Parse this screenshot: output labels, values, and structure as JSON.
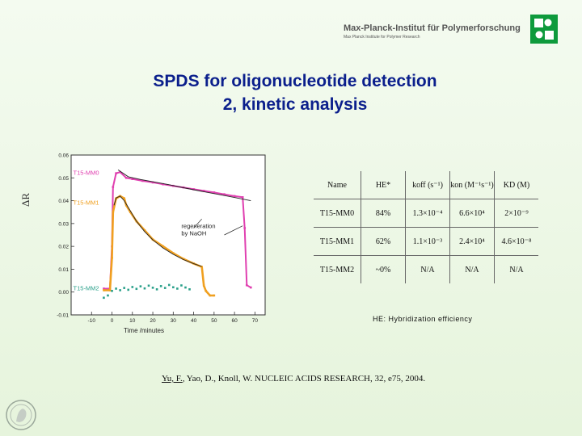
{
  "header": {
    "institute": "Max-Planck-Institut für Polymerforschung",
    "subtitle": "Max Planck Institute for Polymer Research"
  },
  "title": {
    "line1": "SPDS for oligonucleotide detection",
    "line2": "2, kinetic analysis"
  },
  "chart_data": {
    "type": "line",
    "xlabel": "Time /minutes",
    "ylabel": "ΔR",
    "xlim": [
      -20,
      75
    ],
    "ylim": [
      -0.01,
      0.06
    ],
    "x_ticks": [
      -10,
      0,
      10,
      20,
      30,
      40,
      50,
      60,
      70
    ],
    "y_ticks": [
      -0.01,
      0.0,
      0.01,
      0.02,
      0.03,
      0.04,
      0.05,
      0.06
    ],
    "y_tick_labels": [
      "-0.01",
      "0.00",
      "0.01",
      "0.02",
      "0.03",
      "0.04",
      "0.05",
      "0.06"
    ],
    "annotation": "regeneration by NaOH",
    "series": [
      {
        "name": "T15-MM0",
        "color": "#e040b0",
        "x": [
          -4,
          -1,
          0,
          0.5,
          2,
          4,
          7,
          10,
          15,
          20,
          25,
          30,
          35,
          40,
          45,
          50,
          55,
          60,
          64,
          65,
          66,
          68
        ],
        "y": [
          0.0015,
          0.0015,
          0.02,
          0.046,
          0.052,
          0.0525,
          0.05,
          0.0495,
          0.0487,
          0.048,
          0.0472,
          0.0465,
          0.0458,
          0.045,
          0.0443,
          0.0436,
          0.0428,
          0.042,
          0.0415,
          0.028,
          0.003,
          0.002
        ]
      },
      {
        "name": "T15-MM1",
        "color": "#f0a020",
        "x": [
          -4,
          -1,
          0,
          0.5,
          2,
          4,
          6,
          7,
          9,
          12,
          16,
          20,
          25,
          30,
          35,
          40,
          44,
          45,
          46,
          48,
          50
        ],
        "y": [
          0.0008,
          0.0008,
          0.015,
          0.035,
          0.041,
          0.042,
          0.041,
          0.038,
          0.035,
          0.031,
          0.027,
          0.023,
          0.02,
          0.017,
          0.0145,
          0.0125,
          0.011,
          0.0028,
          0.0005,
          -0.0015,
          -0.0015
        ]
      },
      {
        "name": "T15-MM2",
        "color": "#2aa08a",
        "x": [
          -4,
          -2,
          0,
          2,
          4,
          6,
          8,
          10,
          12,
          14,
          16,
          18,
          20,
          22,
          24,
          26,
          28,
          30,
          32,
          34,
          36,
          38
        ],
        "y": [
          -0.0025,
          -0.0015,
          0.0005,
          0.0015,
          0.0008,
          0.0018,
          0.001,
          0.0022,
          0.0014,
          0.0025,
          0.0016,
          0.0028,
          0.0019,
          0.0012,
          0.0026,
          0.0018,
          0.0031,
          0.0021,
          0.0015,
          0.0029,
          0.002,
          0.0012
        ]
      }
    ],
    "fits": [
      {
        "series": "T15-MM0",
        "x": [
          3,
          8,
          14,
          20,
          28,
          36,
          44,
          52,
          60,
          68
        ],
        "y": [
          0.0535,
          0.0505,
          0.0493,
          0.0483,
          0.047,
          0.0455,
          0.0441,
          0.0428,
          0.0414,
          0.04
        ]
      },
      {
        "series": "T15-MM1",
        "x": [
          1,
          2,
          4,
          6,
          9,
          12,
          16,
          20,
          25,
          30,
          35,
          40,
          44
        ],
        "y": [
          0.038,
          0.0412,
          0.042,
          0.04,
          0.0355,
          0.031,
          0.0265,
          0.0228,
          0.0193,
          0.0165,
          0.0142,
          0.0124,
          0.0112
        ]
      }
    ]
  },
  "table": {
    "headers": [
      "Name",
      "HE*",
      "koff (s⁻¹)",
      "kon (M⁻¹s⁻¹)",
      "KD (M)"
    ],
    "rows": [
      [
        "T15-MM0",
        "84%",
        "1.3×10⁻⁴",
        "6.6×10⁴",
        "2×10⁻⁹"
      ],
      [
        "T15-MM1",
        "62%",
        "1.1×10⁻³",
        "2.4×10⁴",
        "4.6×10⁻⁸"
      ],
      [
        "T15-MM2",
        "~0%",
        "N/A",
        "N/A",
        "N/A"
      ]
    ]
  },
  "note": "HE: Hybridization efficiency",
  "citation": {
    "author": "Yu, F.",
    "rest": ", Yao, D., Knoll, W. NUCLEIC ACIDS RESEARCH, 32, e75, 2004."
  },
  "colors": {
    "title": "#0b1f8c",
    "mm0": "#e040b0",
    "mm1": "#f0a020",
    "mm2": "#2aa08a",
    "logo": "#0e9a3c"
  }
}
